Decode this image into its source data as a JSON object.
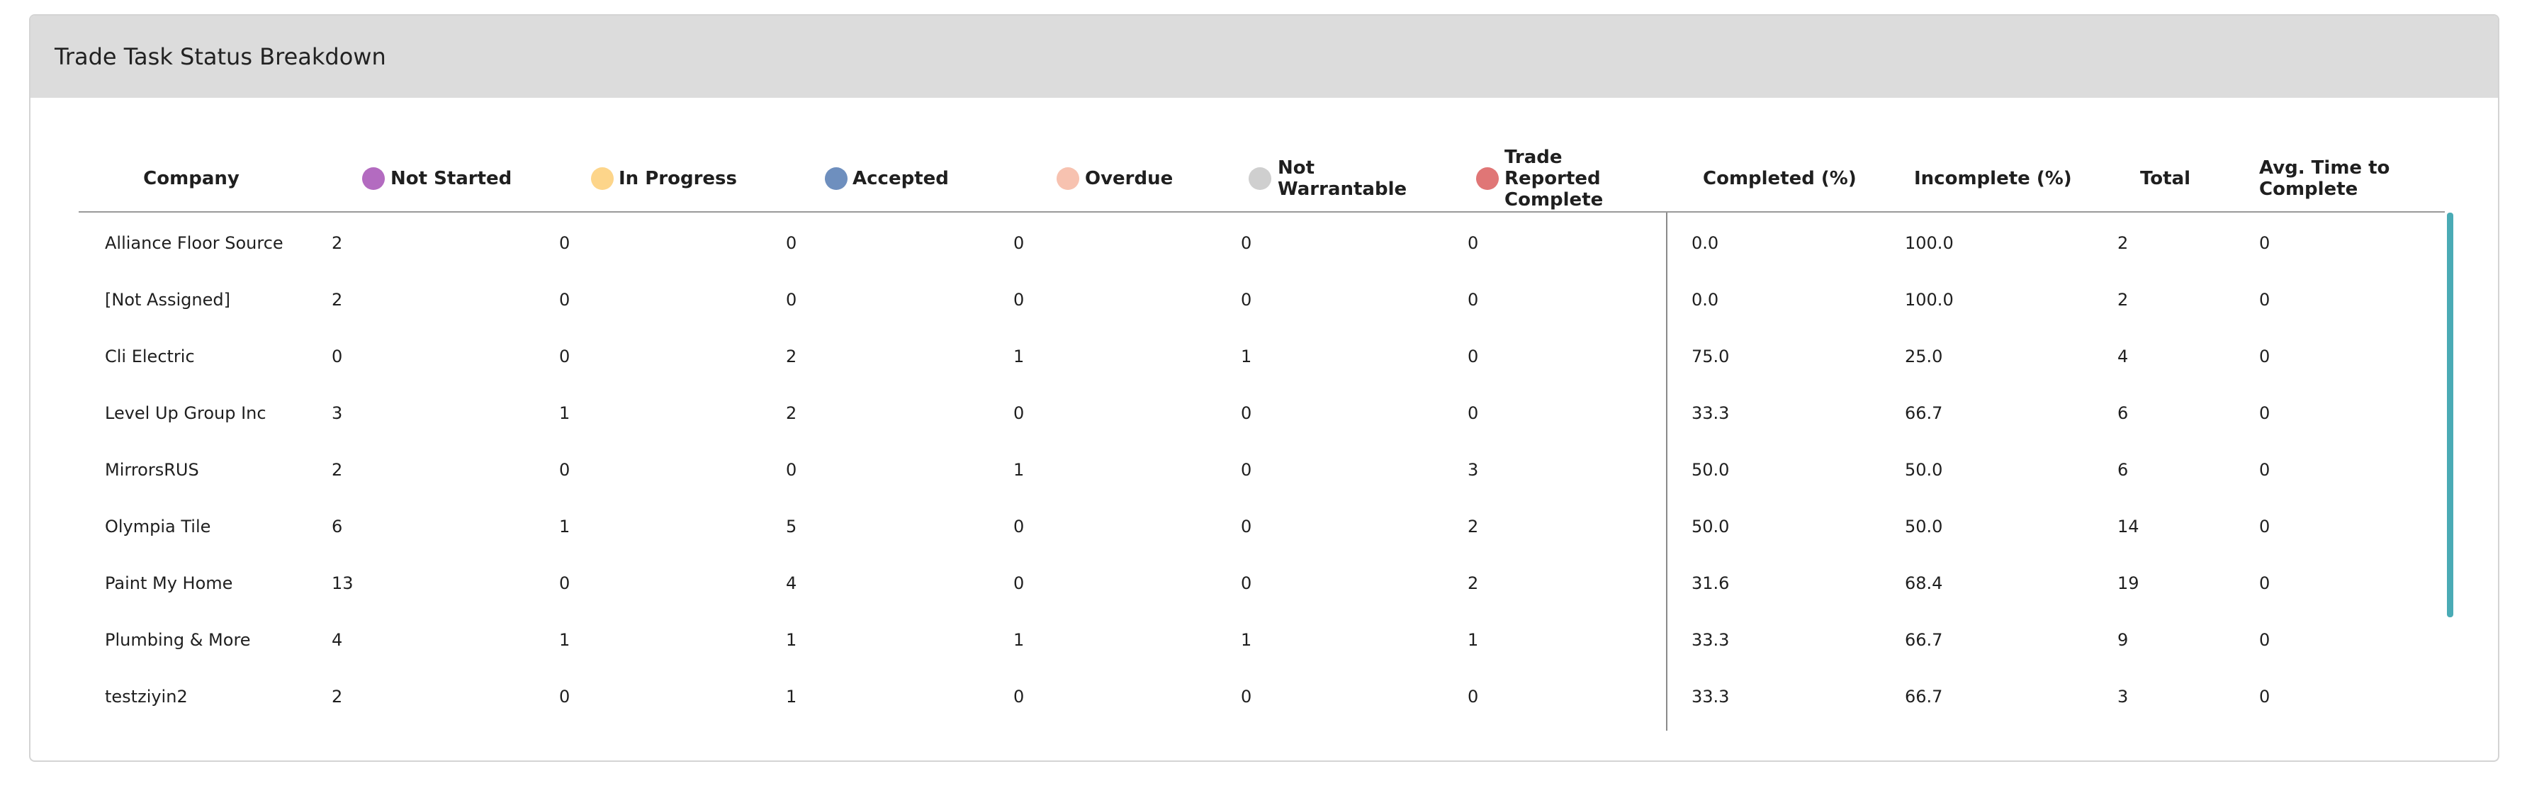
{
  "header": {
    "title": "Trade Task Status Breakdown"
  },
  "table": {
    "columns": [
      "Company",
      "Not Started",
      "In Progress",
      "Accepted",
      "Overdue",
      "Not Warrantable",
      "Trade Reported Complete",
      "Completed (%)",
      "Incomplete (%)",
      "Total",
      "Avg. Time to Complete"
    ],
    "rows": [
      [
        "Alliance Floor Source",
        "2",
        "0",
        "0",
        "0",
        "0",
        "0",
        "0.0",
        "100.0",
        "2",
        "0"
      ],
      [
        "[Not Assigned]",
        "2",
        "0",
        "0",
        "0",
        "0",
        "0",
        "0.0",
        "100.0",
        "2",
        "0"
      ],
      [
        "Cli Electric",
        "0",
        "0",
        "2",
        "1",
        "1",
        "0",
        "75.0",
        "25.0",
        "4",
        "0"
      ],
      [
        "Level Up Group Inc",
        "3",
        "1",
        "2",
        "0",
        "0",
        "0",
        "33.3",
        "66.7",
        "6",
        "0"
      ],
      [
        "MirrorsRUS",
        "2",
        "0",
        "0",
        "1",
        "0",
        "3",
        "50.0",
        "50.0",
        "6",
        "0"
      ],
      [
        "Olympia Tile",
        "6",
        "1",
        "5",
        "0",
        "0",
        "2",
        "50.0",
        "50.0",
        "14",
        "0"
      ],
      [
        "Paint My Home",
        "13",
        "0",
        "4",
        "0",
        "0",
        "2",
        "31.6",
        "68.4",
        "19",
        "0"
      ],
      [
        "Plumbing & More",
        "4",
        "1",
        "1",
        "1",
        "1",
        "1",
        "33.3",
        "66.7",
        "9",
        "0"
      ],
      [
        "testziyin2",
        "2",
        "0",
        "1",
        "0",
        "0",
        "0",
        "33.3",
        "66.7",
        "3",
        "0"
      ]
    ]
  }
}
